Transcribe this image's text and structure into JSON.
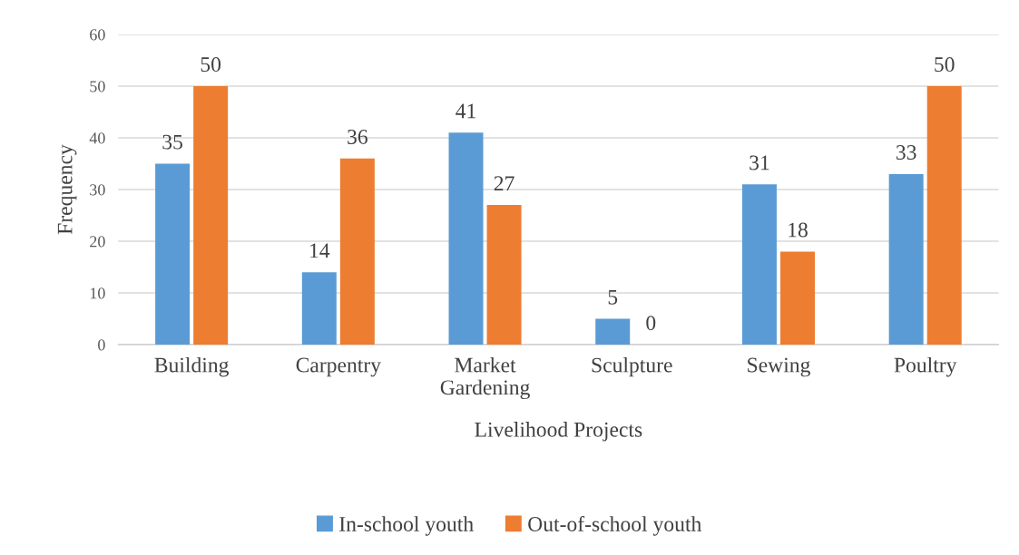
{
  "chart_data": {
    "type": "bar",
    "xlabel": "Livelihood Projects",
    "ylabel": "Frequency",
    "categories": [
      "Building",
      "Carpentry",
      "Market\nGardening",
      "Sculpture",
      "Sewing",
      "Poultry"
    ],
    "series": [
      {
        "name": "In-school youth",
        "color": "#5b9bd5",
        "values": [
          35,
          14,
          41,
          5,
          31,
          33
        ]
      },
      {
        "name": "Out-of-school youth",
        "color": "#ed7d31",
        "values": [
          50,
          36,
          27,
          0,
          18,
          50
        ]
      }
    ],
    "ylim": [
      0,
      60
    ],
    "yticks": [
      0,
      10,
      20,
      30,
      40,
      50,
      60
    ],
    "grid": "y",
    "legend": "bottom",
    "data_labels": true
  }
}
